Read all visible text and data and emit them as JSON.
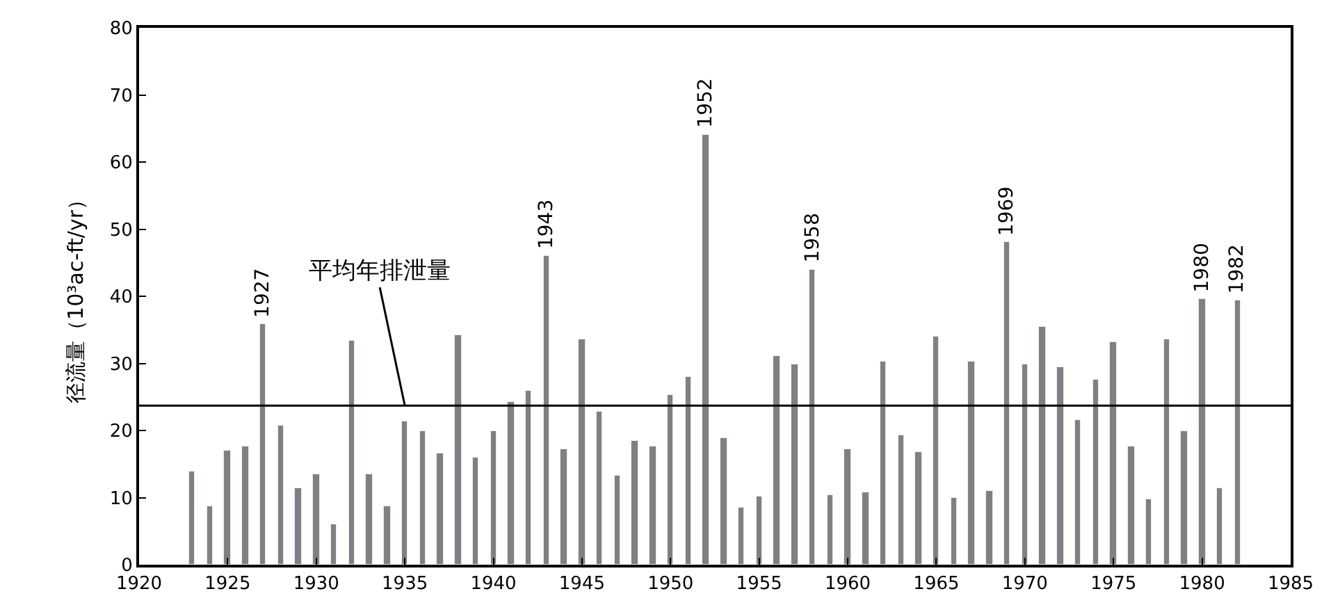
{
  "chart_data": {
    "type": "bar",
    "ylabel": "径流量（10³ac-ft/yr）",
    "x": [
      1923,
      1924,
      1925,
      1926,
      1927,
      1928,
      1929,
      1930,
      1931,
      1932,
      1933,
      1934,
      1935,
      1936,
      1937,
      1938,
      1939,
      1940,
      1941,
      1942,
      1943,
      1944,
      1945,
      1946,
      1947,
      1948,
      1949,
      1950,
      1951,
      1952,
      1953,
      1954,
      1955,
      1956,
      1957,
      1958,
      1959,
      1960,
      1961,
      1962,
      1963,
      1964,
      1965,
      1966,
      1967,
      1968,
      1969,
      1970,
      1971,
      1972,
      1973,
      1974,
      1975,
      1976,
      1977,
      1978,
      1979,
      1980,
      1981,
      1982
    ],
    "values": [
      13.8,
      8.8,
      17,
      17.6,
      35.8,
      20.8,
      11.3,
      13.5,
      6,
      33.3,
      13.5,
      8.7,
      21.3,
      19.9,
      16.6,
      34.3,
      15.9,
      19.9,
      24.2,
      26,
      46,
      17.3,
      33.6,
      22.7,
      13.2,
      18.4,
      17.6,
      25.2,
      27.9,
      64,
      18.8,
      8.4,
      10.1,
      31.1,
      29.8,
      44,
      10.4,
      17.1,
      10.8,
      30.2,
      19.2,
      16.7,
      34,
      10,
      30.2,
      10.9,
      48,
      29.8,
      35.5,
      29.5,
      21.6,
      27.6,
      33.2,
      17.7,
      9.8,
      33.6,
      19.8,
      39.6,
      11.4,
      39.3
    ],
    "color": "#808080",
    "xlim": [
      1920,
      1985
    ],
    "xticks": [
      1920,
      1925,
      1930,
      1935,
      1940,
      1945,
      1950,
      1955,
      1960,
      1965,
      1970,
      1975,
      1980,
      1985
    ],
    "ylim": [
      0,
      80
    ],
    "yticks": [
      0,
      10,
      20,
      30,
      40,
      50,
      60,
      70,
      80
    ],
    "legend": false,
    "ref_lines": [
      {
        "axis": "y",
        "value": 23.7,
        "color": "#000000"
      }
    ],
    "annotations": [
      {
        "text": "平均年排泄量",
        "x": 1935,
        "y": 23.7
      },
      {
        "text": "1927",
        "x": 1927,
        "y": 35.8
      },
      {
        "text": "1943",
        "x": 1943,
        "y": 46
      },
      {
        "text": "1952",
        "x": 1952,
        "y": 64
      },
      {
        "text": "1958",
        "x": 1958,
        "y": 44
      },
      {
        "text": "1969",
        "x": 1969,
        "y": 48
      },
      {
        "text": "1980",
        "x": 1980,
        "y": 39.6
      },
      {
        "text": "1982",
        "x": 1982,
        "y": 39.3
      }
    ]
  }
}
